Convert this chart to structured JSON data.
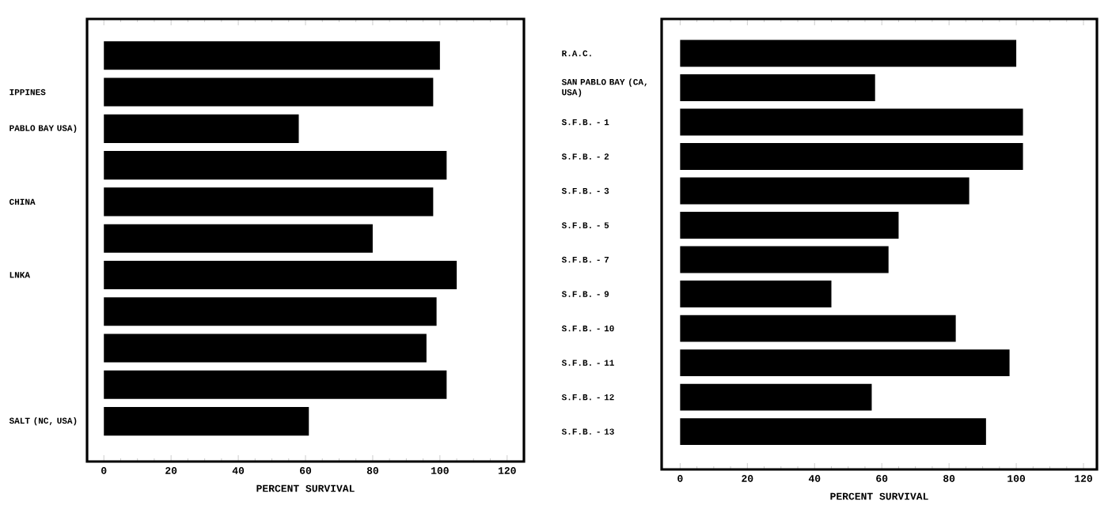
{
  "chart_data": [
    {
      "type": "bar",
      "orientation": "horizontal",
      "categories": [
        null,
        "IPPINES",
        "PABLO BAY USA)",
        null,
        "CHINA",
        null,
        "LNKA",
        null,
        null,
        null,
        "SALT (NC, USA)"
      ],
      "values": [
        100,
        98,
        58,
        102,
        98,
        80,
        105,
        99,
        96,
        102,
        61
      ],
      "color": "#000000",
      "xlim": [
        -5,
        125
      ],
      "xticks": [
        0,
        20,
        40,
        60,
        80,
        100,
        120
      ],
      "xlabel": "PERCENT SURVIVAL",
      "grid": false
    },
    {
      "type": "bar",
      "orientation": "horizontal",
      "categories": [
        "R.A.C.",
        "SAN PABLO BAY (CA, USA)",
        "S.F.B. - 1",
        "S.F.B. - 2",
        "S.F.B. - 3",
        "S.F.B. - 5",
        "S.F.B. - 7",
        "S.F.B. - 9",
        "S.F.B. - 10",
        "S.F.B. - 11",
        "S.F.B. - 12",
        "S.F.B. - 13"
      ],
      "values": [
        100,
        58,
        102,
        102,
        86,
        65,
        62,
        45,
        82,
        98,
        57,
        91
      ],
      "color": "#000000",
      "xlim": [
        -5.5,
        124
      ],
      "xticks": [
        0,
        20,
        40,
        60,
        80,
        100,
        120
      ],
      "xlabel": "PERCENT SURVIVAL",
      "grid": false
    }
  ]
}
